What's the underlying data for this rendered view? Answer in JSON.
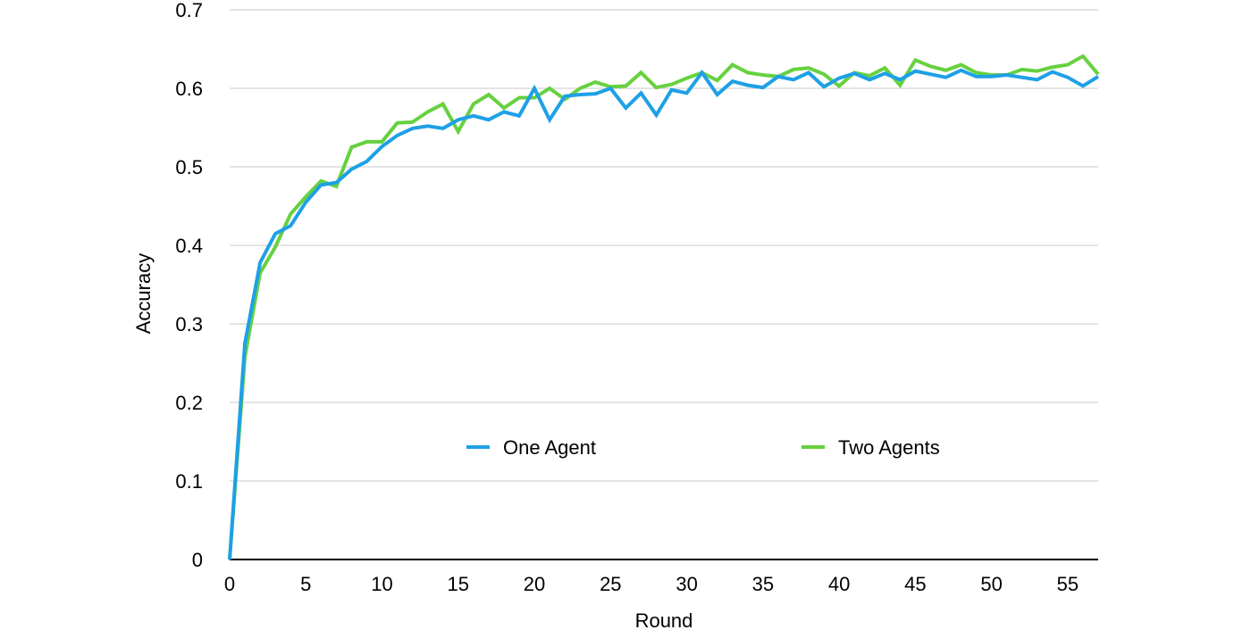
{
  "chart_data": {
    "type": "line",
    "title": "",
    "xlabel": "Round",
    "ylabel": "Accuracy",
    "xlim": [
      0,
      57
    ],
    "ylim": [
      0,
      0.7
    ],
    "x_ticks": [
      "0",
      "5",
      "10",
      "15",
      "20",
      "25",
      "30",
      "35",
      "40",
      "45",
      "50",
      "55"
    ],
    "x_tick_values": [
      0,
      5,
      10,
      15,
      20,
      25,
      30,
      35,
      40,
      45,
      50,
      55
    ],
    "y_ticks": [
      "0",
      "0.1",
      "0.2",
      "0.3",
      "0.4",
      "0.5",
      "0.6",
      "0.7"
    ],
    "y_tick_values": [
      0,
      0.1,
      0.2,
      0.3,
      0.4,
      0.5,
      0.6,
      0.7
    ],
    "grid": true,
    "legend_position": "center",
    "x": [
      0,
      1,
      2,
      3,
      4,
      5,
      6,
      7,
      8,
      9,
      10,
      11,
      12,
      13,
      14,
      15,
      16,
      17,
      18,
      19,
      20,
      21,
      22,
      23,
      24,
      25,
      26,
      27,
      28,
      29,
      30,
      31,
      32,
      33,
      34,
      35,
      36,
      37,
      38,
      39,
      40,
      41,
      42,
      43,
      44,
      45,
      46,
      47,
      48,
      49,
      50,
      51,
      52,
      53,
      54,
      55,
      56,
      57
    ],
    "series": [
      {
        "name": "One Agent",
        "color": "#1ea0e6",
        "values": [
          0.0,
          0.275,
          0.378,
          0.415,
          0.425,
          0.455,
          0.477,
          0.48,
          0.497,
          0.507,
          0.526,
          0.54,
          0.549,
          0.552,
          0.549,
          0.56,
          0.565,
          0.56,
          0.57,
          0.565,
          0.6,
          0.56,
          0.59,
          0.592,
          0.593,
          0.6,
          0.575,
          0.594,
          0.566,
          0.598,
          0.594,
          0.62,
          0.592,
          0.609,
          0.604,
          0.601,
          0.615,
          0.611,
          0.62,
          0.602,
          0.613,
          0.619,
          0.611,
          0.619,
          0.611,
          0.622,
          0.618,
          0.614,
          0.623,
          0.615,
          0.615,
          0.617,
          0.614,
          0.611,
          0.621,
          0.614,
          0.603,
          0.615
        ]
      },
      {
        "name": "Two Agents",
        "color": "#66d13f",
        "values": [
          0.0,
          0.258,
          0.365,
          0.398,
          0.44,
          0.462,
          0.482,
          0.475,
          0.525,
          0.532,
          0.532,
          0.556,
          0.557,
          0.57,
          0.58,
          0.545,
          0.58,
          0.592,
          0.575,
          0.588,
          0.588,
          0.6,
          0.586,
          0.6,
          0.608,
          0.602,
          0.603,
          0.62,
          0.601,
          0.605,
          0.613,
          0.62,
          0.61,
          0.63,
          0.62,
          0.617,
          0.615,
          0.624,
          0.626,
          0.618,
          0.603,
          0.62,
          0.616,
          0.626,
          0.604,
          0.636,
          0.628,
          0.623,
          0.63,
          0.62,
          0.617,
          0.617,
          0.624,
          0.622,
          0.627,
          0.63,
          0.641,
          0.618
        ]
      }
    ]
  }
}
